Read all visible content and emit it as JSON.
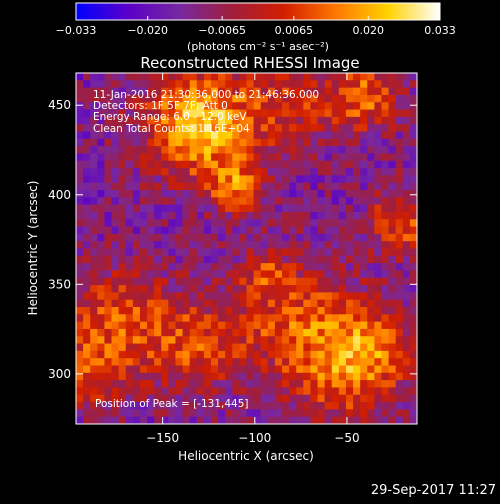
{
  "chart_data": {
    "type": "heatmap",
    "title": "Reconstructed RHESSI Image",
    "xlabel": "Heliocentric X (arcsec)",
    "ylabel": "Heliocentric Y (arcsec)",
    "xlim": [
      -197,
      -12
    ],
    "ylim": [
      272,
      468
    ],
    "xticks": [
      -150,
      -100,
      -50
    ],
    "yticks": [
      300,
      350,
      400,
      450
    ],
    "colorbar": {
      "label": "(photons cm⁻² s⁻¹ asec⁻²)",
      "range": [
        -0.033,
        0.033
      ],
      "ticks": [
        "−0.033",
        "−0.020",
        "−0.0065",
        "0.0065",
        "0.020",
        "0.033"
      ],
      "tick_values": [
        -0.033,
        -0.02,
        -0.0065,
        0.0065,
        0.02,
        0.033
      ],
      "colors": [
        "#0000ff",
        "#5a00c8",
        "#7828a0",
        "#a01e3c",
        "#d21e00",
        "#ff7800",
        "#ffd200",
        "#ffffff"
      ]
    },
    "annotations": [
      "11-Jan-2016 21:30:36.000 to 21:46:36.000",
      "Detectors: 1F 5F 7F, Att 0",
      "Energy Range: 6.0 - 12.0 keV",
      "Clean     Total Counts: 1.16E+04"
    ],
    "peak_label": "Position of Peak = [-131,445]",
    "peak": [
      -131,
      445
    ]
  },
  "timestamp": "29-Sep-2017 11:27"
}
